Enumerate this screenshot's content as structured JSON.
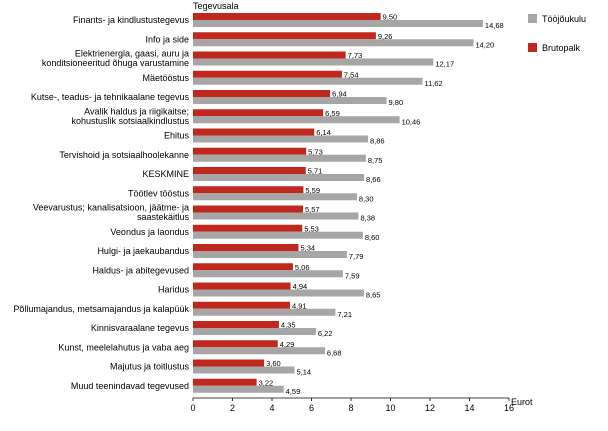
{
  "chart_data": {
    "type": "bar",
    "orientation": "horizontal",
    "ylabel": "Tegevusala",
    "xlabel": "Eurot",
    "xlim": [
      0,
      16
    ],
    "xticks": [
      0,
      2,
      4,
      6,
      8,
      10,
      12,
      14,
      16
    ],
    "grid": false,
    "legend_position": "right",
    "categories": [
      "Finants- ja kindlustustegevus",
      "Info ja side",
      "Elektrienergia, gaasi, auru ja|konditsioneeritud õhuga varustamine",
      "Mäetööstus",
      "Kutse-, teadus- ja tehnikaalane tegevus",
      "Avalik haldus ja riigikaitse;|kohustuslik sotsiaalkindlustus",
      "Ehitus",
      "Tervishoid ja sotsiaalhoolekanne",
      "KESKMINE",
      "Töötlev tööstus",
      "Veevarustus; kanalisatsioon, jäätme- ja|saastekäitlus",
      "Veondus ja laondus",
      "Hulgi- ja jaekaubandus",
      "Haldus- ja abitegevused",
      "Haridus",
      "Põllumajandus, metsamajandus ja kalapüük",
      "Kinnisvaraalane tegevus",
      "Kunst, meelelahutus ja vaba aeg",
      "Majutus ja toitlustus",
      "Muud teenindavad tegevused"
    ],
    "series": [
      {
        "name": "Brutopalk",
        "color": "#c0281e",
        "values": [
          9.5,
          9.26,
          7.73,
          7.54,
          6.94,
          6.59,
          6.14,
          5.73,
          5.71,
          5.59,
          5.57,
          5.53,
          5.34,
          5.06,
          4.94,
          4.91,
          4.35,
          4.29,
          3.6,
          3.22
        ],
        "labels": [
          "9,50",
          "9,26",
          "7,73",
          "7,54",
          "6,94",
          "6,59",
          "6,14",
          "5,73",
          "5,71",
          "5,59",
          "5,57",
          "5,53",
          "5,34",
          "5,06",
          "4,94",
          "4,91",
          "4,35",
          "4,29",
          "3,60",
          "3,22"
        ]
      },
      {
        "name": "Tööjõukulu",
        "color": "#a6a6a6",
        "values": [
          14.68,
          14.2,
          12.17,
          11.62,
          9.8,
          10.46,
          8.86,
          8.75,
          8.66,
          8.3,
          8.38,
          8.6,
          7.79,
          7.59,
          8.65,
          7.21,
          6.22,
          6.68,
          5.14,
          4.59
        ],
        "labels": [
          "14,68",
          "14,20",
          "12,17",
          "11,62",
          "9,80",
          "10,46",
          "8,86",
          "8,75",
          "8,66",
          "8,30",
          "8,38",
          "8,60",
          "7,79",
          "7,59",
          "8,65",
          "7,21",
          "6,22",
          "6,68",
          "5,14",
          "4,59"
        ]
      }
    ],
    "legend": [
      {
        "name": "Tööjõukulu",
        "color": "#a6a6a6"
      },
      {
        "name": "Brutopalk",
        "color": "#c0281e"
      }
    ]
  }
}
